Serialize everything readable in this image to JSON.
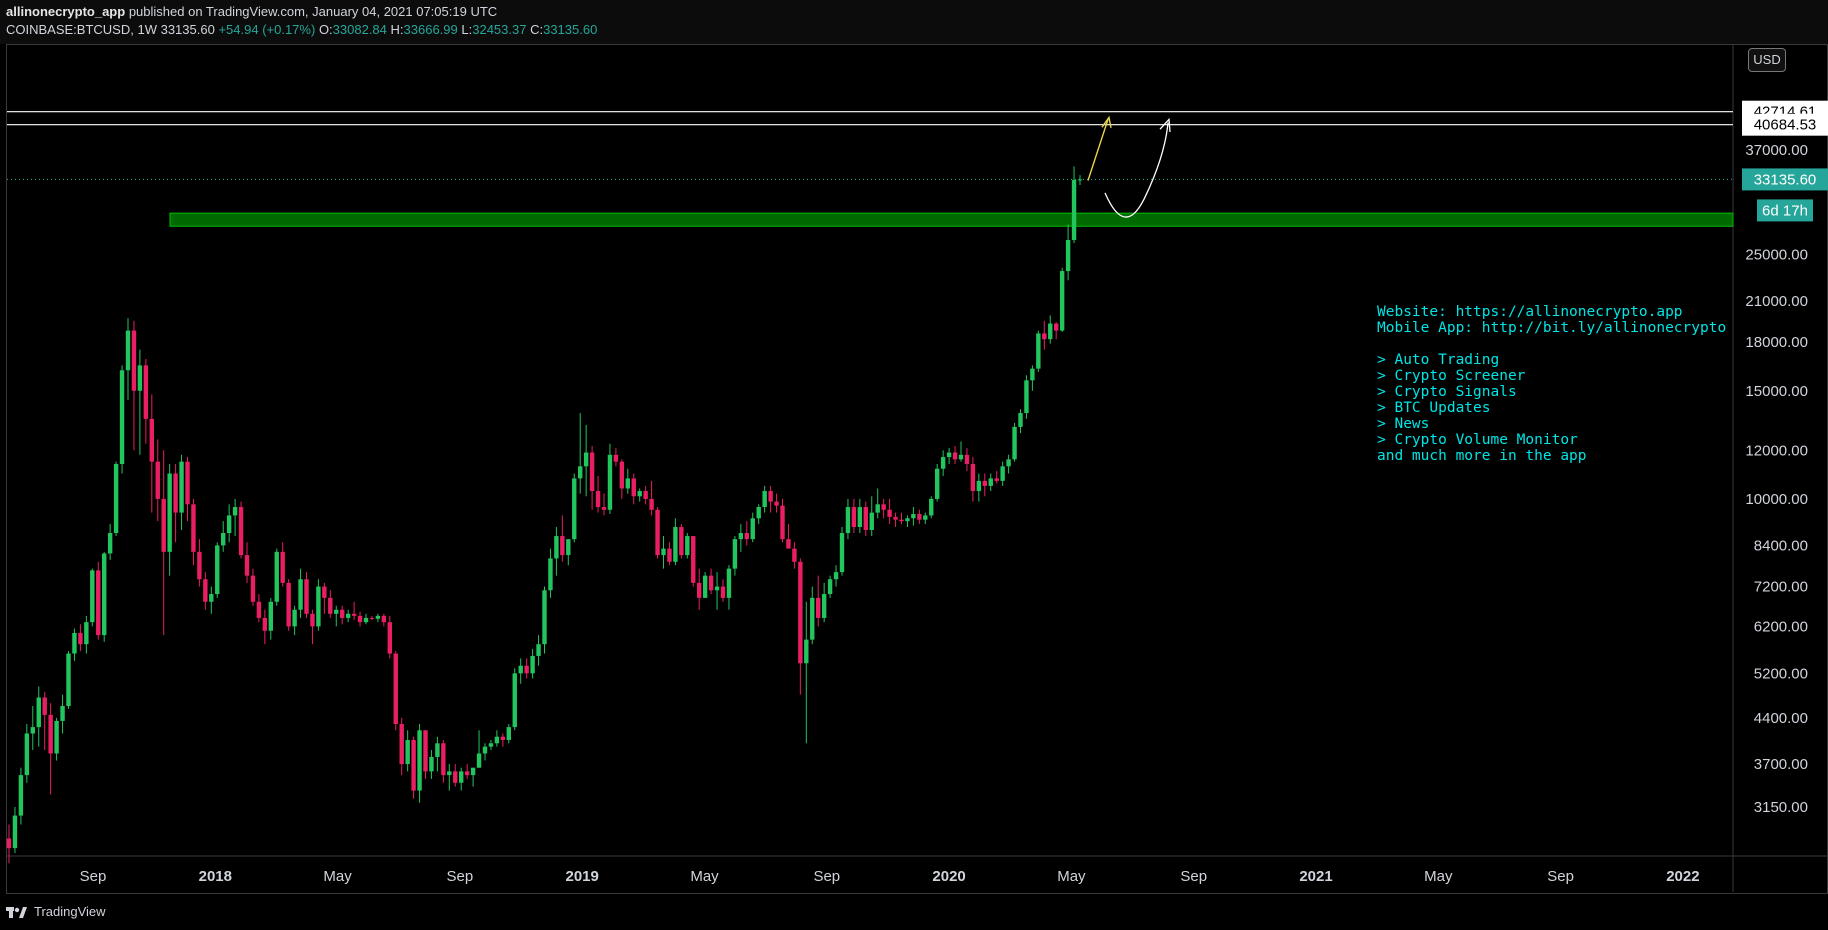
{
  "header": {
    "author": "allinonecrypto_app",
    "published_text": "published on TradingView.com, January 04, 2021 07:05:19 UTC",
    "symbol": "COINBASE:BTCUSD, 1W",
    "last": "33135.60",
    "change": "+54.94 (+0.17%)",
    "open_label": "O:",
    "open": "33082.84",
    "high_label": "H:",
    "high": "33666.99",
    "low_label": "L:",
    "low": "32453.37",
    "close_label": "C:",
    "close": "33135.60"
  },
  "footer": {
    "brand": "TradingView"
  },
  "currency_badge": "USD",
  "colors": {
    "up": "#26a69a",
    "down": "#ef5350",
    "candle_up": "#22c55e",
    "candle_down": "#e91e63",
    "zone": "#00c000",
    "annotation": "#00e5e5",
    "price_tag": "#26a69a"
  },
  "annotation_lines": [
    "Website: https://allinonecrypto.app",
    "Mobile App: http://bit.ly/allinonecrypto",
    "",
    "> Auto Trading",
    "> Crypto Screener",
    "> Crypto Signals",
    "> BTC Updates",
    "> News",
    "> Crypto Volume Monitor",
    "and much more in the app"
  ],
  "chart_data": {
    "type": "candlestick",
    "scale": "log",
    "y_ticks": [
      3150,
      3700,
      4400,
      5200,
      6200,
      7200,
      8400,
      10000,
      12000,
      15000,
      18000,
      21000,
      25000,
      37000
    ],
    "y_tick_labels": [
      "3150.00",
      "3700.00",
      "4400.00",
      "5200.00",
      "6200.00",
      "7200.00",
      "8400.00",
      "10000.00",
      "12000.00",
      "15000.00",
      "18000.00",
      "21000.00",
      "25000.00",
      "37000.00"
    ],
    "x_tick_labels": [
      "Sep",
      "2018",
      "May",
      "Sep",
      "2019",
      "May",
      "Sep",
      "2020",
      "May",
      "Sep",
      "2021",
      "May",
      "Sep",
      "2022"
    ],
    "x_tick_bold": [
      false,
      true,
      false,
      false,
      true,
      false,
      false,
      true,
      false,
      false,
      true,
      false,
      false,
      true
    ],
    "price_tags": [
      {
        "label": "42714.61",
        "value": 42714.61,
        "style": "white"
      },
      {
        "label": "40684.53",
        "value": 40684.53,
        "style": "white"
      },
      {
        "label": "33135.60",
        "value": 33135.6,
        "style": "last"
      },
      {
        "label": "6d 17h",
        "value": 29500,
        "style": "countdown"
      }
    ],
    "horizontal_lines": [
      42714.61,
      40684.53
    ],
    "support_zone": {
      "from": 27800,
      "to": 29200
    },
    "series_ohlc": [
      [
        2800,
        2950,
        2550,
        2700
      ],
      [
        2700,
        3150,
        2650,
        3050
      ],
      [
        3050,
        3650,
        2950,
        3550
      ],
      [
        3550,
        4300,
        3450,
        4150
      ],
      [
        4150,
        4600,
        3900,
        4250
      ],
      [
        4250,
        4950,
        3950,
        4750
      ],
      [
        4750,
        4850,
        3900,
        4450
      ],
      [
        4450,
        4650,
        3300,
        3850
      ],
      [
        3850,
        4400,
        3750,
        4350
      ],
      [
        4350,
        4800,
        4150,
        4600
      ],
      [
        4600,
        5650,
        4550,
        5600
      ],
      [
        5600,
        6150,
        5450,
        6050
      ],
      [
        6050,
        6250,
        5650,
        5800
      ],
      [
        5800,
        6450,
        5600,
        6300
      ],
      [
        6300,
        7700,
        6200,
        7650
      ],
      [
        7650,
        7900,
        5900,
        6000
      ],
      [
        6000,
        8200,
        5850,
        8150
      ],
      [
        8150,
        9100,
        7950,
        8800
      ],
      [
        8800,
        11500,
        8700,
        11400
      ],
      [
        11400,
        16500,
        11000,
        16200
      ],
      [
        16200,
        19700,
        14500,
        18800
      ],
      [
        18800,
        19500,
        12000,
        15000
      ],
      [
        15000,
        17500,
        11800,
        16500
      ],
      [
        16500,
        16900,
        12300,
        13500
      ],
      [
        13500,
        14800,
        9500,
        11500
      ],
      [
        11500,
        12500,
        9200,
        10000
      ],
      [
        10000,
        12000,
        6000,
        8200
      ],
      [
        8200,
        11400,
        7500,
        11000
      ],
      [
        11000,
        11400,
        8500,
        9500
      ],
      [
        9500,
        11800,
        8900,
        11500
      ],
      [
        11500,
        11700,
        9200,
        9800
      ],
      [
        9800,
        10000,
        7800,
        8200
      ],
      [
        8200,
        8600,
        7200,
        7400
      ],
      [
        7400,
        7600,
        6600,
        6800
      ],
      [
        6800,
        7200,
        6500,
        7000
      ],
      [
        7000,
        8500,
        6900,
        8400
      ],
      [
        8400,
        9200,
        8200,
        8800
      ],
      [
        8800,
        9800,
        8500,
        9400
      ],
      [
        9400,
        10000,
        8700,
        9700
      ],
      [
        9700,
        9900,
        8000,
        8100
      ],
      [
        8100,
        8500,
        7300,
        7500
      ],
      [
        7500,
        7700,
        6700,
        6800
      ],
      [
        6800,
        7000,
        6300,
        6400
      ],
      [
        6400,
        6600,
        5800,
        6100
      ],
      [
        6100,
        6900,
        5900,
        6800
      ],
      [
        6800,
        8300,
        6700,
        8200
      ],
      [
        8200,
        8500,
        7200,
        7300
      ],
      [
        7300,
        7400,
        6100,
        6200
      ],
      [
        6200,
        6700,
        6000,
        6600
      ],
      [
        6600,
        7700,
        6400,
        7400
      ],
      [
        7400,
        7600,
        6400,
        6500
      ],
      [
        6500,
        6600,
        5800,
        6200
      ],
      [
        6200,
        7400,
        6100,
        7200
      ],
      [
        7200,
        7300,
        6500,
        6900
      ],
      [
        6900,
        7100,
        6400,
        6500
      ],
      [
        6500,
        6700,
        6200,
        6600
      ],
      [
        6600,
        6700,
        6250,
        6400
      ],
      [
        6400,
        6600,
        6300,
        6500
      ],
      [
        6500,
        6800,
        6350,
        6450
      ],
      [
        6450,
        6550,
        6200,
        6300
      ],
      [
        6300,
        6500,
        6250,
        6400
      ],
      [
        6400,
        6450,
        6350,
        6380
      ],
      [
        6380,
        6500,
        6300,
        6450
      ],
      [
        6450,
        6500,
        6200,
        6300
      ],
      [
        6300,
        6450,
        5500,
        5600
      ],
      [
        5600,
        5650,
        4200,
        4300
      ],
      [
        4300,
        4400,
        3550,
        3700
      ],
      [
        3700,
        4200,
        3600,
        4050
      ],
      [
        4050,
        4100,
        3250,
        3350
      ],
      [
        3350,
        4300,
        3200,
        4200
      ],
      [
        4200,
        4200,
        3500,
        3600
      ],
      [
        3600,
        3900,
        3500,
        3800
      ],
      [
        3800,
        4100,
        3600,
        4000
      ],
      [
        4000,
        4050,
        3450,
        3550
      ],
      [
        3550,
        3700,
        3350,
        3600
      ],
      [
        3600,
        3700,
        3400,
        3450
      ],
      [
        3450,
        3650,
        3350,
        3600
      ],
      [
        3600,
        3700,
        3500,
        3550
      ],
      [
        3550,
        3650,
        3400,
        3650
      ],
      [
        3650,
        4200,
        3650,
        3850
      ],
      [
        3850,
        4000,
        3750,
        3950
      ],
      [
        3950,
        4050,
        3900,
        4000
      ],
      [
        4000,
        4200,
        3950,
        4100
      ],
      [
        4100,
        4150,
        3950,
        4050
      ],
      [
        4050,
        4300,
        4000,
        4250
      ],
      [
        4250,
        5300,
        4200,
        5200
      ],
      [
        5200,
        5500,
        5000,
        5350
      ],
      [
        5350,
        5500,
        5100,
        5200
      ],
      [
        5200,
        5700,
        5100,
        5550
      ],
      [
        5550,
        6000,
        5350,
        5800
      ],
      [
        5800,
        7200,
        5600,
        7100
      ],
      [
        7100,
        8300,
        6900,
        8000
      ],
      [
        8000,
        9000,
        7500,
        8700
      ],
      [
        8700,
        9400,
        7900,
        8100
      ],
      [
        8100,
        8400,
        7800,
        8600
      ],
      [
        8600,
        11000,
        8500,
        10800
      ],
      [
        10800,
        13800,
        10200,
        11300
      ],
      [
        11300,
        13200,
        10100,
        11900
      ],
      [
        11900,
        12200,
        9600,
        10300
      ],
      [
        10300,
        10900,
        9500,
        9700
      ],
      [
        9700,
        10200,
        9400,
        9600
      ],
      [
        9600,
        12300,
        9450,
        11800
      ],
      [
        11800,
        12100,
        11300,
        11500
      ],
      [
        11500,
        11600,
        10000,
        10400
      ],
      [
        10400,
        11200,
        10200,
        10800
      ],
      [
        10800,
        11000,
        9800,
        10100
      ],
      [
        10100,
        10400,
        9900,
        10300
      ],
      [
        10300,
        10500,
        9800,
        10000
      ],
      [
        10000,
        10700,
        9400,
        9600
      ],
      [
        9600,
        9700,
        8000,
        8100
      ],
      [
        8100,
        8700,
        7700,
        8300
      ],
      [
        8300,
        8500,
        7800,
        7900
      ],
      [
        7900,
        9300,
        7800,
        9000
      ],
      [
        9000,
        9100,
        8000,
        8100
      ],
      [
        8100,
        8800,
        8000,
        8700
      ],
      [
        8700,
        8700,
        7200,
        7300
      ],
      [
        7300,
        7700,
        6600,
        6900
      ],
      [
        6900,
        7600,
        6900,
        7500
      ],
      [
        7500,
        7700,
        7000,
        7100
      ],
      [
        7100,
        7600,
        6600,
        7200
      ],
      [
        7200,
        7400,
        6800,
        6900
      ],
      [
        6900,
        7800,
        6600,
        7700
      ],
      [
        7700,
        8700,
        7500,
        8600
      ],
      [
        8600,
        9100,
        8200,
        8800
      ],
      [
        8800,
        9200,
        8400,
        8600
      ],
      [
        8600,
        9500,
        8500,
        9300
      ],
      [
        9300,
        9800,
        9100,
        9700
      ],
      [
        9700,
        10500,
        9500,
        10300
      ],
      [
        10300,
        10500,
        9500,
        9900
      ],
      [
        9900,
        10200,
        9500,
        9750
      ],
      [
        9750,
        10000,
        8500,
        8600
      ],
      [
        8600,
        9100,
        8400,
        8300
      ],
      [
        8300,
        8500,
        7700,
        7900
      ],
      [
        7900,
        8000,
        4800,
        5400
      ],
      [
        5400,
        6800,
        4000,
        5900
      ],
      [
        5900,
        7200,
        5800,
        6900
      ],
      [
        6900,
        7500,
        6200,
        6400
      ],
      [
        6400,
        7300,
        6300,
        7000
      ],
      [
        7000,
        7500,
        6900,
        7400
      ],
      [
        7400,
        7800,
        7200,
        7600
      ],
      [
        7600,
        9000,
        7500,
        8800
      ],
      [
        8800,
        10000,
        8600,
        9700
      ],
      [
        9700,
        10000,
        8800,
        9000
      ],
      [
        9000,
        10000,
        8800,
        9700
      ],
      [
        9700,
        9900,
        8700,
        8900
      ],
      [
        8900,
        10100,
        8700,
        9500
      ],
      [
        9500,
        10400,
        9300,
        9800
      ],
      [
        9800,
        10000,
        9300,
        9600
      ],
      [
        9600,
        10000,
        9100,
        9350
      ],
      [
        9350,
        9500,
        9000,
        9250
      ],
      [
        9250,
        9500,
        9100,
        9200
      ],
      [
        9200,
        9400,
        9000,
        9300
      ],
      [
        9300,
        9700,
        9050,
        9450
      ],
      [
        9450,
        9600,
        9100,
        9250
      ],
      [
        9250,
        9500,
        9100,
        9400
      ],
      [
        9400,
        10100,
        9300,
        10000
      ],
      [
        10000,
        11400,
        9900,
        11200
      ],
      [
        11200,
        12000,
        10900,
        11700
      ],
      [
        11700,
        12100,
        11400,
        11900
      ],
      [
        11900,
        12200,
        11400,
        11600
      ],
      [
        11600,
        12400,
        11500,
        11800
      ],
      [
        11800,
        12100,
        11100,
        11400
      ],
      [
        11400,
        11700,
        9900,
        10300
      ],
      [
        10300,
        11000,
        9900,
        10700
      ],
      [
        10700,
        11000,
        10100,
        10500
      ],
      [
        10500,
        11000,
        10300,
        10800
      ],
      [
        10800,
        11100,
        10600,
        10700
      ],
      [
        10700,
        11500,
        10500,
        11300
      ],
      [
        11300,
        11800,
        11000,
        11600
      ],
      [
        11600,
        13300,
        11500,
        13100
      ],
      [
        13100,
        14000,
        12800,
        13800
      ],
      [
        13800,
        15900,
        13500,
        15600
      ],
      [
        15600,
        16500,
        15000,
        16300
      ],
      [
        16300,
        18800,
        16100,
        18600
      ],
      [
        18600,
        19500,
        17500,
        18200
      ],
      [
        18200,
        19900,
        17900,
        19300
      ],
      [
        19300,
        19400,
        18200,
        18800
      ],
      [
        18800,
        23800,
        18700,
        23500
      ],
      [
        23500,
        28000,
        22700,
        26400
      ],
      [
        26400,
        34800,
        26100,
        33080
      ],
      [
        33082.84,
        33666.99,
        32453.37,
        33135.6
      ]
    ],
    "projection_arrows": [
      {
        "color": "yellow"
      },
      {
        "color": "white"
      }
    ]
  }
}
